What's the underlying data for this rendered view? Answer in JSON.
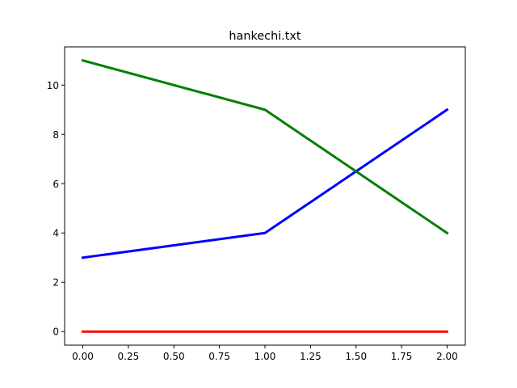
{
  "chart_data": {
    "type": "line",
    "title": "hankechi.txt",
    "xlabel": "",
    "ylabel": "",
    "x": [
      0,
      1,
      2
    ],
    "xlim": [
      -0.1,
      2.1
    ],
    "ylim": [
      -0.55,
      11.55
    ],
    "xticks": [
      0.0,
      0.25,
      0.5,
      0.75,
      1.0,
      1.25,
      1.5,
      1.75,
      2.0
    ],
    "xtick_labels": [
      "0.00",
      "0.25",
      "0.50",
      "0.75",
      "1.00",
      "1.25",
      "1.50",
      "1.75",
      "2.00"
    ],
    "yticks": [
      0,
      2,
      4,
      6,
      8,
      10
    ],
    "ytick_labels": [
      "0",
      "2",
      "4",
      "6",
      "8",
      "10"
    ],
    "grid": false,
    "legend": "none",
    "series": [
      {
        "color": "#ff0000",
        "values": [
          0,
          0,
          0
        ]
      },
      {
        "color": "#0000ff",
        "values": [
          3,
          4,
          9
        ]
      },
      {
        "color": "#008000",
        "values": [
          11,
          9,
          4
        ]
      }
    ]
  }
}
